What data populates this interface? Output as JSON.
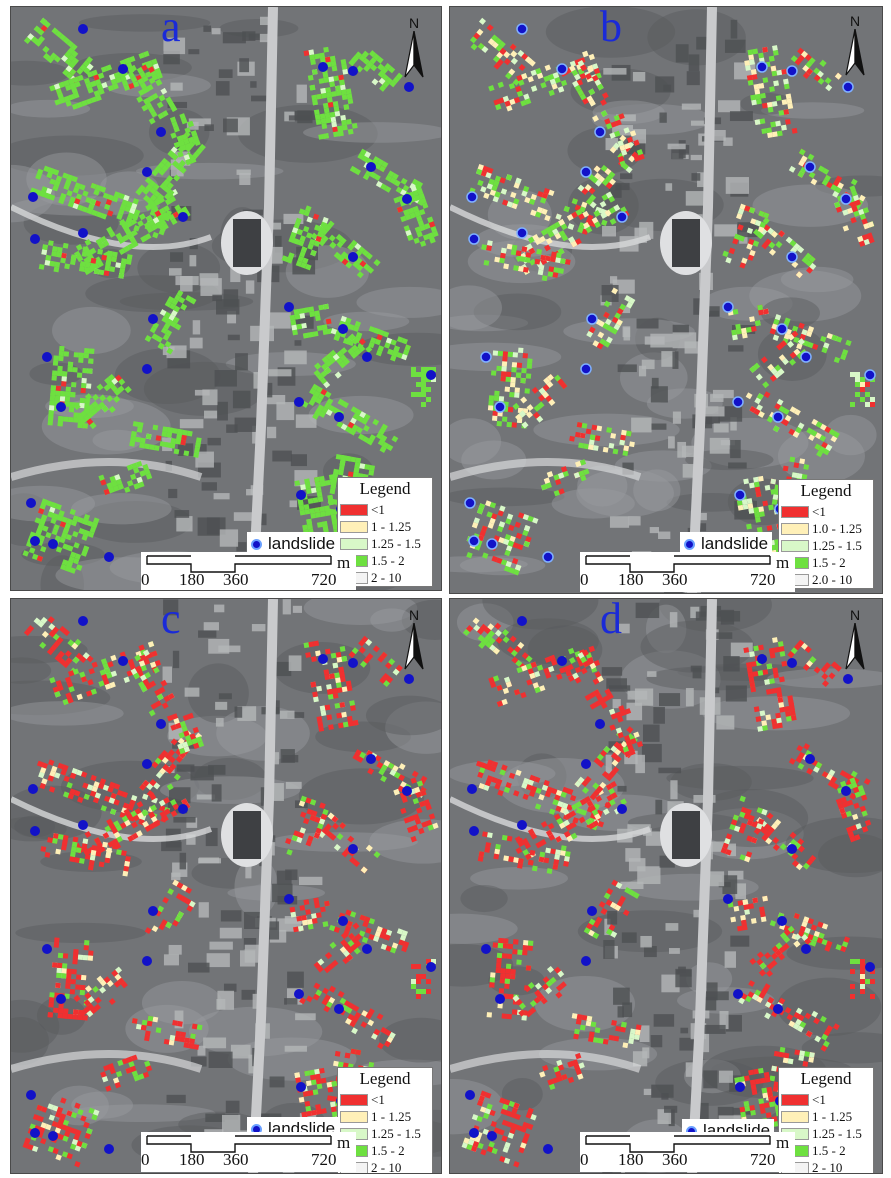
{
  "figure": {
    "panels": [
      {
        "id": "a",
        "label": "a",
        "north": "N",
        "legend": {
          "title": "Legend",
          "classes": [
            "<1",
            "1 - 1.25",
            "1.25 - 1.5",
            "1.5 - 2",
            "2 - 10"
          ]
        },
        "landslide_label": "landslide",
        "scale": {
          "ticks": [
            "0",
            "180",
            "360",
            "720"
          ],
          "unit": "m"
        },
        "dominant_class": "1.5 - 2"
      },
      {
        "id": "b",
        "label": "b",
        "north": "N",
        "legend": {
          "title": "Legend",
          "classes": [
            "<1",
            "1.0 - 1.25",
            "1.25 - 1.5",
            "1.5 - 2",
            "2.0 - 10"
          ]
        },
        "landslide_label": "landslide",
        "scale": {
          "ticks": [
            "0",
            "180",
            "360",
            "720"
          ],
          "unit": "m"
        },
        "dominant_class": "mixed"
      },
      {
        "id": "c",
        "label": "c",
        "north": "N",
        "legend": {
          "title": "Legend",
          "classes": [
            "<1",
            "1 - 1.25",
            "1.25 - 1.5",
            "1.5 - 2",
            "2 - 10"
          ]
        },
        "landslide_label": "landslide",
        "scale": {
          "ticks": [
            "0",
            "180",
            "360",
            "720"
          ],
          "unit": "m"
        },
        "dominant_class": "<1"
      },
      {
        "id": "d",
        "label": "d",
        "north": "N",
        "legend": {
          "title": "Legend",
          "classes": [
            "<1",
            "1 - 1.25",
            "1.25 - 1.5",
            "1.5 - 2",
            "2 - 10"
          ]
        },
        "landslide_label": "landslide",
        "scale": {
          "ticks": [
            "0",
            "180",
            "360",
            "720"
          ],
          "unit": "m"
        },
        "dominant_class": "<1"
      }
    ],
    "colors": {
      "class_lt1": "#f03030",
      "class_1_125": "#fff0b8",
      "class_125_15": "#d8f8c8",
      "class_15_2": "#6ee040",
      "class_2_10": "#f4f4f4",
      "landslide_marker": "#1212c8",
      "panel_label": "#1a2ad8"
    }
  }
}
